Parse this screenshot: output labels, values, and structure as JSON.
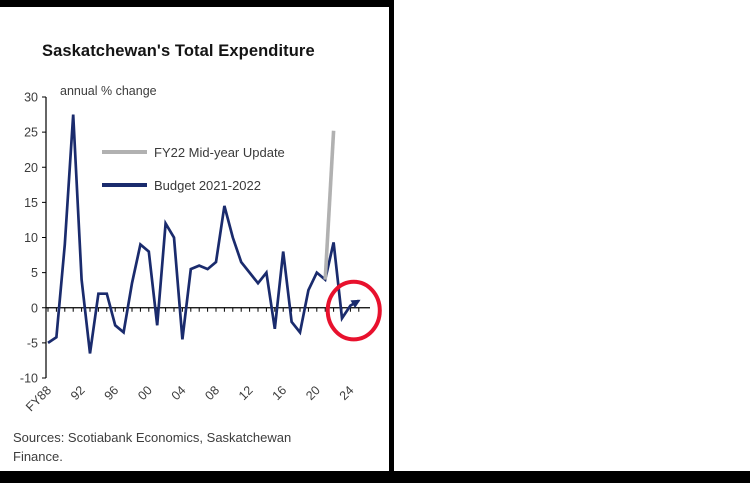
{
  "page": {
    "title": "Saskatchewan's Total Expenditure",
    "axis_note": "annual % change",
    "source_line": "Sources: Scotiabank Economics, Saskatchewan Finance."
  },
  "legend": {
    "items": [
      {
        "label": "FY22 Mid-year Update",
        "color": "#b1b1b1"
      },
      {
        "label": "Budget 2021-2022",
        "color": "#1a2b6d"
      }
    ]
  },
  "colors": {
    "navy": "#1a2b6d",
    "gray": "#b1b1b1",
    "red": "#e8112d",
    "axis": "#000000",
    "frame": "#000000"
  },
  "chart_data": {
    "type": "line",
    "title": "Saskatchewan's Total Expenditure",
    "units_note": "annual % change",
    "xlabel": "",
    "ylabel": "annual % change",
    "ylim": [
      -10,
      30
    ],
    "ytick_step": 5,
    "x_end_year": 2025,
    "x_ticks": [
      {
        "label": "FY88",
        "year": 1988
      },
      {
        "label": "92",
        "year": 1992
      },
      {
        "label": "96",
        "year": 1996
      },
      {
        "label": "00",
        "year": 2000
      },
      {
        "label": "04",
        "year": 2004
      },
      {
        "label": "08",
        "year": 2008
      },
      {
        "label": "12",
        "year": 2012
      },
      {
        "label": "16",
        "year": 2016
      },
      {
        "label": "20",
        "year": 2020
      },
      {
        "label": "24",
        "year": 2024
      }
    ],
    "series": [
      {
        "name": "Budget 2021-2022",
        "color": "#1a2b6d",
        "width": 2.7,
        "arrow_end": true,
        "x_start_year": 1988,
        "values": [
          -5.0,
          -4.2,
          9.0,
          27.5,
          4.0,
          -6.5,
          2.0,
          2.0,
          -2.5,
          -3.5,
          3.5,
          9.0,
          8.0,
          -2.5,
          12.0,
          10.0,
          -4.5,
          5.5,
          6.0,
          5.5,
          6.5,
          14.5,
          10.0,
          6.5,
          5.0,
          3.5,
          5.0,
          -3.0,
          8.0,
          -2.0,
          -3.5,
          2.5,
          5.0,
          4.0,
          9.3,
          -1.5,
          0.3,
          1.0
        ]
      },
      {
        "name": "FY22 Mid-year Update",
        "color": "#b1b1b1",
        "width": 3.6,
        "arrow_end": false,
        "x": [
          2021,
          2022
        ],
        "values": [
          4.0,
          25.2
        ]
      }
    ],
    "annotation": {
      "shape": "ellipse",
      "x_year": 2024.4,
      "y_value": -0.4,
      "rx_years": 3.1,
      "ry_units": 4.1,
      "color": "#e8112d",
      "stroke_width": 4
    }
  }
}
